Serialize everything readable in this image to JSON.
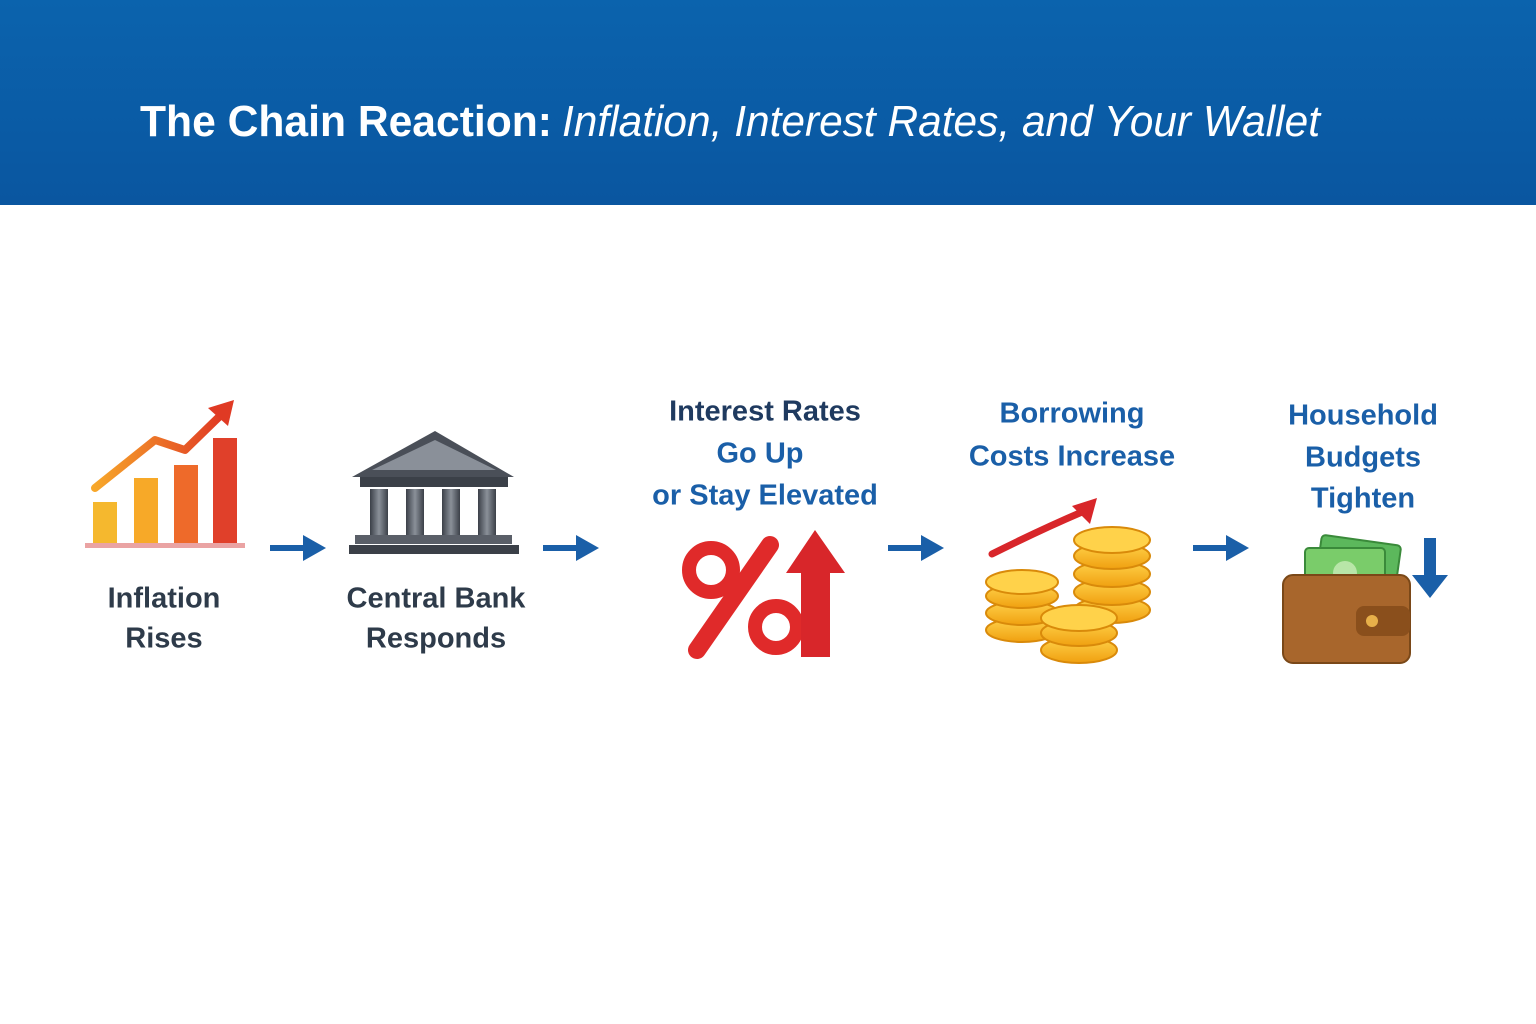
{
  "header": {
    "title_lead": "The Chain Reaction:",
    "title_rest": "Inflation, Interest Rates, and Your Wallet"
  },
  "steps": [
    {
      "lines": [
        "Inflation",
        "Rises"
      ]
    },
    {
      "lines": [
        "Central Bank",
        "Responds"
      ]
    },
    {
      "lines": [
        "Interest Rates",
        "Go Up",
        "or Stay Elevated"
      ]
    },
    {
      "lines": [
        "Borrowing",
        "Costs Increase"
      ]
    },
    {
      "lines": [
        "Household",
        "Budgets",
        "Tighten"
      ]
    }
  ]
}
